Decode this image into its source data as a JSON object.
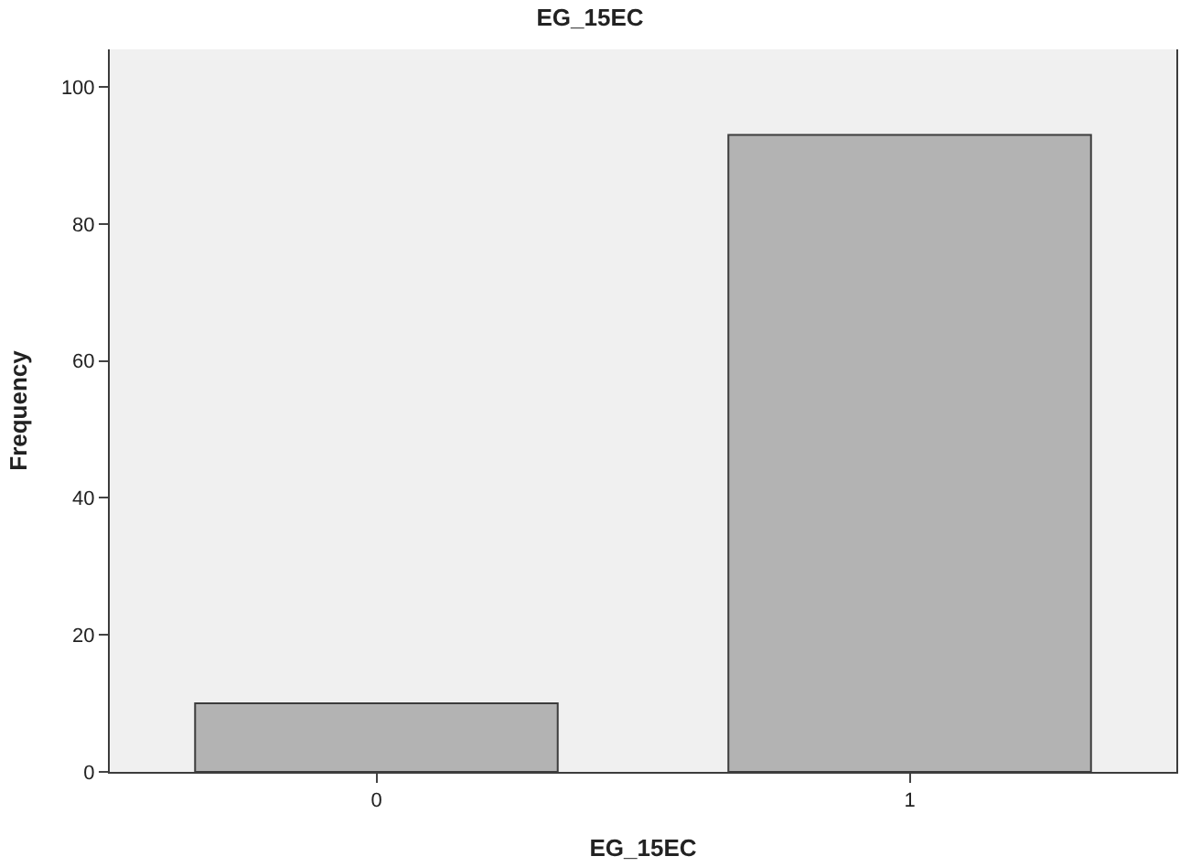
{
  "chart_data": {
    "type": "bar",
    "title": "EG_15EC",
    "xlabel": "EG_15EC",
    "ylabel": "Frequency",
    "categories": [
      "0",
      "1"
    ],
    "values": [
      10,
      93
    ],
    "color": "#b3b3b3",
    "ylim": [
      0,
      105.5
    ],
    "yticks": [
      0,
      20,
      40,
      60,
      80,
      100
    ],
    "grid": false,
    "legend": false
  }
}
